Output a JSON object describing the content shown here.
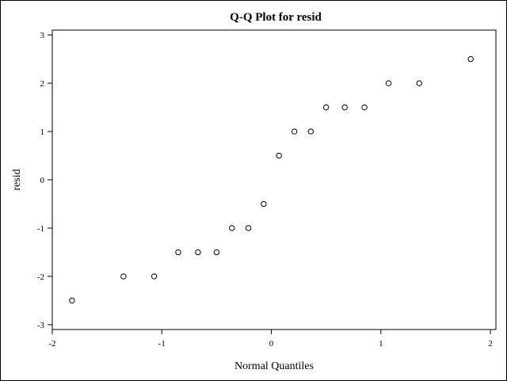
{
  "chart_data": {
    "type": "scatter",
    "title": "Q-Q Plot for resid",
    "xlabel": "Normal Quantiles",
    "ylabel": "resid",
    "xlim": [
      -2.0,
      2.05
    ],
    "ylim": [
      -3.1,
      3.1
    ],
    "x_ticks": [
      -2,
      -1,
      0,
      1,
      2
    ],
    "y_ticks": [
      -3,
      -2,
      -1,
      0,
      1,
      2,
      3
    ],
    "grid": false,
    "marker": "open-circle",
    "x": [
      -1.82,
      -1.35,
      -1.07,
      -0.85,
      -0.67,
      -0.5,
      -0.36,
      -0.21,
      -0.07,
      0.07,
      0.21,
      0.36,
      0.5,
      0.67,
      0.85,
      1.07,
      1.35,
      1.82
    ],
    "y": [
      -2.5,
      -2.0,
      -2.0,
      -1.5,
      -1.5,
      -1.5,
      -1.0,
      -1.0,
      -0.5,
      0.5,
      1.0,
      1.0,
      1.5,
      1.5,
      1.5,
      2.0,
      2.0,
      2.5
    ]
  },
  "colors": {
    "axis": "#000000",
    "marker": "#000000",
    "background": "#ffffff"
  }
}
